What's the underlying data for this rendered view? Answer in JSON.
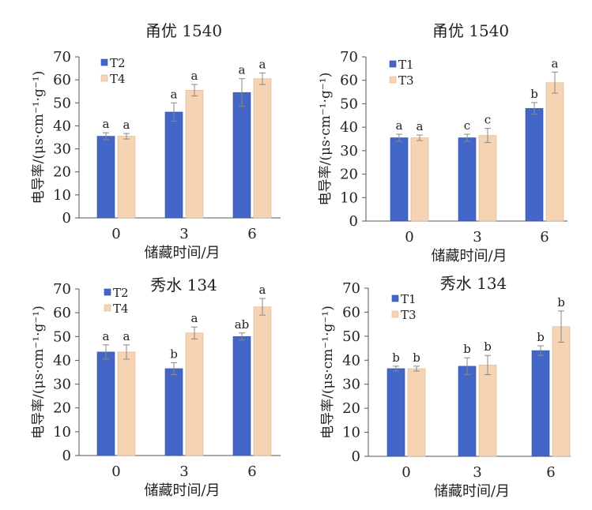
{
  "colors": {
    "blue": "#4466c6",
    "peach": "#f5d3b3",
    "axis": "#555555",
    "error": "#888888"
  },
  "chart_data": [
    {
      "type": "bar",
      "title": "甬优 1540",
      "xlabel": "储藏时间/月",
      "ylabel": "电导率/(μs·cm⁻¹·g⁻¹)",
      "ylim": [
        0,
        70
      ],
      "yticks": [
        0,
        10,
        20,
        30,
        40,
        50,
        60,
        70
      ],
      "categories": [
        "0",
        "3",
        "6"
      ],
      "legend": "top-left",
      "series": [
        {
          "name": "T2",
          "color": "blue",
          "values": [
            35.5,
            46,
            54.5
          ],
          "errors": [
            1.5,
            4,
            6
          ],
          "labels": [
            "a",
            "a",
            "a"
          ]
        },
        {
          "name": "T4",
          "color": "peach",
          "values": [
            35.5,
            55.5,
            60.5
          ],
          "errors": [
            1.2,
            2.5,
            2.5
          ],
          "labels": [
            "a",
            "a",
            "a"
          ]
        }
      ]
    },
    {
      "type": "bar",
      "title": "甬优 1540",
      "xlabel": "储藏时间/月",
      "ylabel": "电导率/(μs·cm⁻¹·g⁻¹)",
      "ylim": [
        0,
        70
      ],
      "yticks": [
        0,
        10,
        20,
        30,
        40,
        50,
        60,
        70
      ],
      "categories": [
        "0",
        "3",
        "6"
      ],
      "legend": "top-left",
      "series": [
        {
          "name": "T1",
          "color": "blue",
          "values": [
            35.5,
            35.5,
            48
          ],
          "errors": [
            1.5,
            1.5,
            2.5
          ],
          "labels": [
            "a",
            "c",
            "b"
          ]
        },
        {
          "name": "T3",
          "color": "peach",
          "values": [
            35.5,
            36.5,
            59
          ],
          "errors": [
            1.2,
            3,
            4.5
          ],
          "labels": [
            "a",
            "c",
            "a"
          ]
        }
      ]
    },
    {
      "type": "bar",
      "title": "秀水 134",
      "xlabel": "储藏时间/月",
      "ylabel": "电导率/(μs·cm⁻¹·g⁻¹)",
      "ylim": [
        0,
        70
      ],
      "yticks": [
        0,
        10,
        20,
        30,
        40,
        50,
        60,
        70
      ],
      "categories": [
        "0",
        "3",
        "6"
      ],
      "legend": "top-left",
      "series": [
        {
          "name": "T2",
          "color": "blue",
          "values": [
            43.5,
            36.5,
            50
          ],
          "errors": [
            3,
            2.5,
            1.5
          ],
          "labels": [
            "a",
            "b",
            "ab"
          ]
        },
        {
          "name": "T4",
          "color": "peach",
          "values": [
            43.5,
            51.5,
            62.5
          ],
          "errors": [
            3,
            2.5,
            3.5
          ],
          "labels": [
            "a",
            "a",
            "a"
          ]
        }
      ]
    },
    {
      "type": "bar",
      "title": "秀水 134",
      "xlabel": "储藏时间/月",
      "ylabel": "电导率/(μs·cm⁻¹·g⁻¹)",
      "ylim": [
        0,
        70
      ],
      "yticks": [
        0,
        10,
        20,
        30,
        40,
        50,
        60,
        70
      ],
      "categories": [
        "0",
        "3",
        "6"
      ],
      "legend": "top-left",
      "series": [
        {
          "name": "T1",
          "color": "blue",
          "values": [
            36.5,
            37.5,
            44
          ],
          "errors": [
            1,
            3.5,
            2
          ],
          "labels": [
            "b",
            "b",
            "b"
          ]
        },
        {
          "name": "T3",
          "color": "peach",
          "values": [
            36.5,
            38,
            54
          ],
          "errors": [
            1,
            4,
            6.5
          ],
          "labels": [
            "b",
            "b",
            "b"
          ]
        }
      ]
    }
  ]
}
